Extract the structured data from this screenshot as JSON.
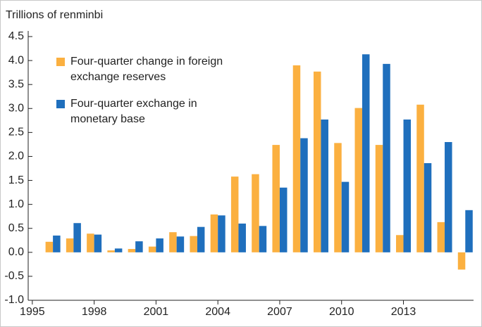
{
  "chart_data": {
    "type": "bar",
    "title": "Trillions of renminbi",
    "x": [
      1996,
      1997,
      1998,
      1999,
      2000,
      2001,
      2002,
      2003,
      2004,
      2005,
      2006,
      2007,
      2008,
      2009,
      2010,
      2011,
      2012,
      2013,
      2014,
      2015,
      2016
    ],
    "series": [
      {
        "name": "Four-quarter change in foreign exchange reserves",
        "color": "#fbb040",
        "values": [
          0.22,
          0.29,
          0.39,
          0.04,
          0.07,
          0.12,
          0.42,
          0.34,
          0.79,
          1.58,
          1.63,
          2.24,
          3.9,
          3.77,
          2.28,
          3.01,
          2.24,
          0.36,
          3.08,
          0.63,
          -0.36
        ]
      },
      {
        "name": "Four-quarter exchange in monetary base",
        "color": "#1f6fbd",
        "values": [
          0.35,
          0.61,
          0.37,
          0.08,
          0.23,
          0.29,
          0.33,
          0.53,
          0.77,
          0.6,
          0.55,
          1.35,
          2.38,
          2.77,
          1.47,
          4.13,
          3.93,
          2.77,
          1.86,
          2.3,
          0.88
        ]
      }
    ],
    "xlim": [
      1994.8,
      2016.4
    ],
    "xticks": [
      1995,
      1998,
      2001,
      2004,
      2007,
      2010,
      2013
    ],
    "ylim": [
      -1.0,
      4.5
    ],
    "yticks": [
      {
        "value": -1.0,
        "label": "-1.0"
      },
      -0.5,
      {
        "value": 0.0,
        "label": "0.0"
      },
      0.5,
      {
        "value": 1.0,
        "label": "1.0"
      },
      1.5,
      {
        "value": 2.0,
        "label": "2.0"
      },
      2.5,
      {
        "value": 3.0,
        "label": "3.0"
      },
      3.5,
      {
        "value": 4.0,
        "label": "4.0"
      },
      4.5
    ],
    "legend": "top-left"
  }
}
